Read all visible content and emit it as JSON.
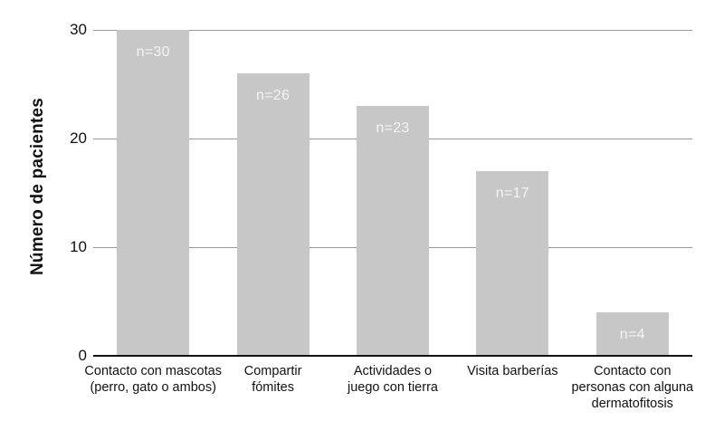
{
  "chart_data": {
    "type": "bar",
    "title": "",
    "xlabel": "",
    "ylabel": "Número de pacientes",
    "ylim": [
      0,
      30
    ],
    "yticks": [
      0,
      10,
      20,
      30
    ],
    "grid": "horizontal gridlines at 10, 20, 30",
    "legend_position": "none",
    "categories": [
      "Contacto con mascotas\n(perro, gato o ambos)",
      "Compartir\nfómites",
      "Actividades o\njuego con tierra",
      "Visita barberías",
      "Contacto con\npersonas con alguna\ndermatofitosis"
    ],
    "values": [
      30,
      26,
      23,
      17,
      4
    ],
    "bar_labels": [
      "n=30",
      "n=26",
      "n=23",
      "n=17",
      "n=4"
    ],
    "colors": {
      "bar": "#c7c7c7",
      "bar_label_text": "#f4f4f4",
      "gridline": "#999999",
      "axis_line": "#111111",
      "tick_text": "#111111",
      "background": "#ffffff"
    }
  }
}
